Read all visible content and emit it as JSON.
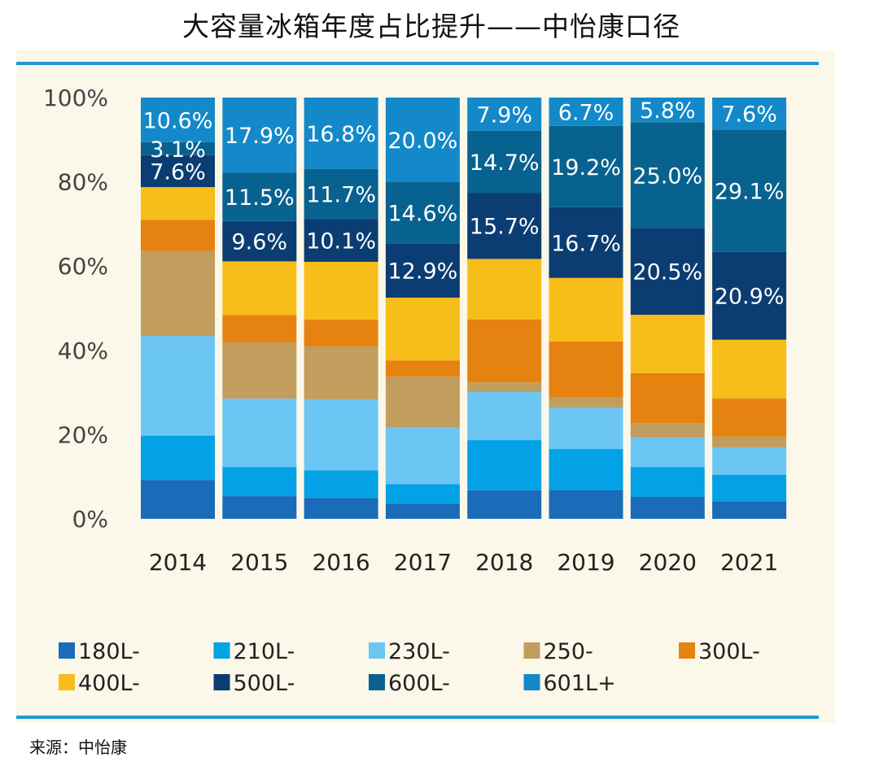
{
  "title": "大容量冰箱年度占比提升——中怡康口径",
  "source": "来源：中怡康",
  "chart_data": {
    "type": "bar",
    "stacked": true,
    "categories": [
      "2014",
      "2015",
      "2016",
      "2017",
      "2018",
      "2019",
      "2020",
      "2021"
    ],
    "y_ticks": [
      "0%",
      "20%",
      "40%",
      "60%",
      "80%",
      "100%"
    ],
    "ylim": [
      0,
      100
    ],
    "legend_position": "bottom",
    "series": [
      {
        "name": "180L-",
        "color": "#1a6cb8",
        "values": [
          9.2,
          5.4,
          4.9,
          3.6,
          6.8,
          6.8,
          5.2,
          4.2
        ]
      },
      {
        "name": "210L-",
        "color": "#03a1e6",
        "values": [
          10.6,
          6.9,
          6.5,
          4.6,
          11.9,
          9.7,
          7.0,
          6.3
        ]
      },
      {
        "name": "230L-",
        "color": "#6cc6f4",
        "values": [
          23.7,
          16.3,
          16.7,
          13.5,
          11.4,
          9.7,
          7.0,
          6.4
        ]
      },
      {
        "name": "250-",
        "color": "#c19d5e",
        "values": [
          20.2,
          13.4,
          12.4,
          12.1,
          2.3,
          2.5,
          3.4,
          2.7
        ]
      },
      {
        "name": "300L-",
        "color": "#e6820f",
        "values": [
          7.4,
          6.5,
          6.3,
          3.8,
          14.9,
          13.2,
          11.8,
          9.0
        ]
      },
      {
        "name": "400L-",
        "color": "#f7bd19",
        "values": [
          7.8,
          12.8,
          13.6,
          14.9,
          14.4,
          15.0,
          13.8,
          14.0
        ]
      },
      {
        "name": "500L-",
        "color": "#0b3d72",
        "values": [
          7.6,
          9.6,
          10.1,
          12.9,
          15.7,
          16.7,
          20.5,
          20.9
        ]
      },
      {
        "name": "600L-",
        "color": "#08628f",
        "values": [
          3.1,
          11.5,
          11.7,
          14.6,
          14.7,
          19.2,
          25.0,
          29.1
        ]
      },
      {
        "name": "601L+",
        "color": "#1389c9",
        "values": [
          10.6,
          17.9,
          16.8,
          20.0,
          7.9,
          6.7,
          5.8,
          7.6
        ]
      }
    ],
    "data_labels": [
      {
        "category": "2014",
        "series": "500L-",
        "text": "7.6%"
      },
      {
        "category": "2014",
        "series": "600L-",
        "text": "3.1%"
      },
      {
        "category": "2014",
        "series": "601L+",
        "text": "10.6%"
      },
      {
        "category": "2015",
        "series": "500L-",
        "text": "9.6%"
      },
      {
        "category": "2015",
        "series": "600L-",
        "text": "11.5%"
      },
      {
        "category": "2015",
        "series": "601L+",
        "text": "17.9%"
      },
      {
        "category": "2016",
        "series": "500L-",
        "text": "10.1%"
      },
      {
        "category": "2016",
        "series": "600L-",
        "text": "11.7%"
      },
      {
        "category": "2016",
        "series": "601L+",
        "text": "16.8%"
      },
      {
        "category": "2017",
        "series": "500L-",
        "text": "12.9%"
      },
      {
        "category": "2017",
        "series": "600L-",
        "text": "14.6%"
      },
      {
        "category": "2017",
        "series": "601L+",
        "text": "20.0%"
      },
      {
        "category": "2018",
        "series": "500L-",
        "text": "15.7%"
      },
      {
        "category": "2018",
        "series": "600L-",
        "text": "14.7%"
      },
      {
        "category": "2018",
        "series": "601L+",
        "text": "7.9%"
      },
      {
        "category": "2019",
        "series": "500L-",
        "text": "16.7%"
      },
      {
        "category": "2019",
        "series": "600L-",
        "text": "19.2%"
      },
      {
        "category": "2019",
        "series": "601L+",
        "text": "6.7%"
      },
      {
        "category": "2020",
        "series": "500L-",
        "text": "20.5%"
      },
      {
        "category": "2020",
        "series": "600L-",
        "text": "25.0%"
      },
      {
        "category": "2020",
        "series": "601L+",
        "text": "5.8%"
      },
      {
        "category": "2021",
        "series": "500L-",
        "text": "20.9%"
      },
      {
        "category": "2021",
        "series": "600L-",
        "text": "29.1%"
      },
      {
        "category": "2021",
        "series": "601L+",
        "text": "7.6%"
      }
    ]
  }
}
